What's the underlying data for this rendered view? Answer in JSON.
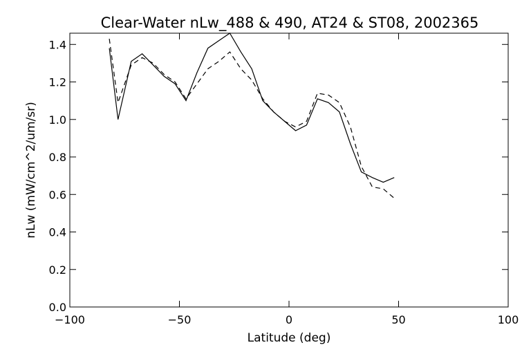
{
  "chart_data": {
    "type": "line",
    "title": "Clear-Water nLw_488 & 490, AT24 & ST08, 2002365",
    "xlabel": "Latitude (deg)",
    "ylabel": "nLw (mW/cm^2/um/sr)",
    "xlim": [
      -100,
      100
    ],
    "ylim": [
      0.0,
      1.46
    ],
    "xticks": [
      -100,
      -50,
      0,
      50,
      100
    ],
    "xtick_labels": [
      "−100",
      "−50",
      "0",
      "50",
      "100"
    ],
    "yticks": [
      0.0,
      0.2,
      0.4,
      0.6,
      0.8,
      1.0,
      1.2,
      1.4
    ],
    "ytick_labels": [
      "0.0",
      "0.2",
      "0.4",
      "0.6",
      "0.8",
      "1.0",
      "1.2",
      "1.4"
    ],
    "grid": false,
    "series": [
      {
        "style": "solid",
        "x": [
          -82,
          -78,
          -72,
          -67,
          -62,
          -57,
          -52,
          -47,
          -42,
          -37,
          -32,
          -27,
          -22,
          -17,
          -12,
          -7,
          -2,
          3,
          8,
          13,
          18,
          23,
          28,
          33,
          38,
          43,
          48
        ],
        "y": [
          1.38,
          1.0,
          1.31,
          1.35,
          1.29,
          1.23,
          1.19,
          1.1,
          1.25,
          1.38,
          1.42,
          1.46,
          1.36,
          1.27,
          1.1,
          1.04,
          0.99,
          0.94,
          0.97,
          1.11,
          1.09,
          1.04,
          0.87,
          0.72,
          0.69,
          0.665,
          0.69
        ]
      },
      {
        "style": "dashed",
        "x": [
          -82,
          -78,
          -72,
          -67,
          -62,
          -57,
          -52,
          -47,
          -42,
          -37,
          -32,
          -27,
          -22,
          -17,
          -12,
          -7,
          -2,
          3,
          8,
          13,
          18,
          23,
          28,
          33,
          38,
          43,
          48
        ],
        "y": [
          1.43,
          1.09,
          1.29,
          1.33,
          1.3,
          1.24,
          1.2,
          1.11,
          1.19,
          1.27,
          1.31,
          1.36,
          1.27,
          1.21,
          1.11,
          1.04,
          0.99,
          0.96,
          0.99,
          1.14,
          1.13,
          1.09,
          0.96,
          0.75,
          0.64,
          0.63,
          0.58
        ]
      }
    ]
  }
}
